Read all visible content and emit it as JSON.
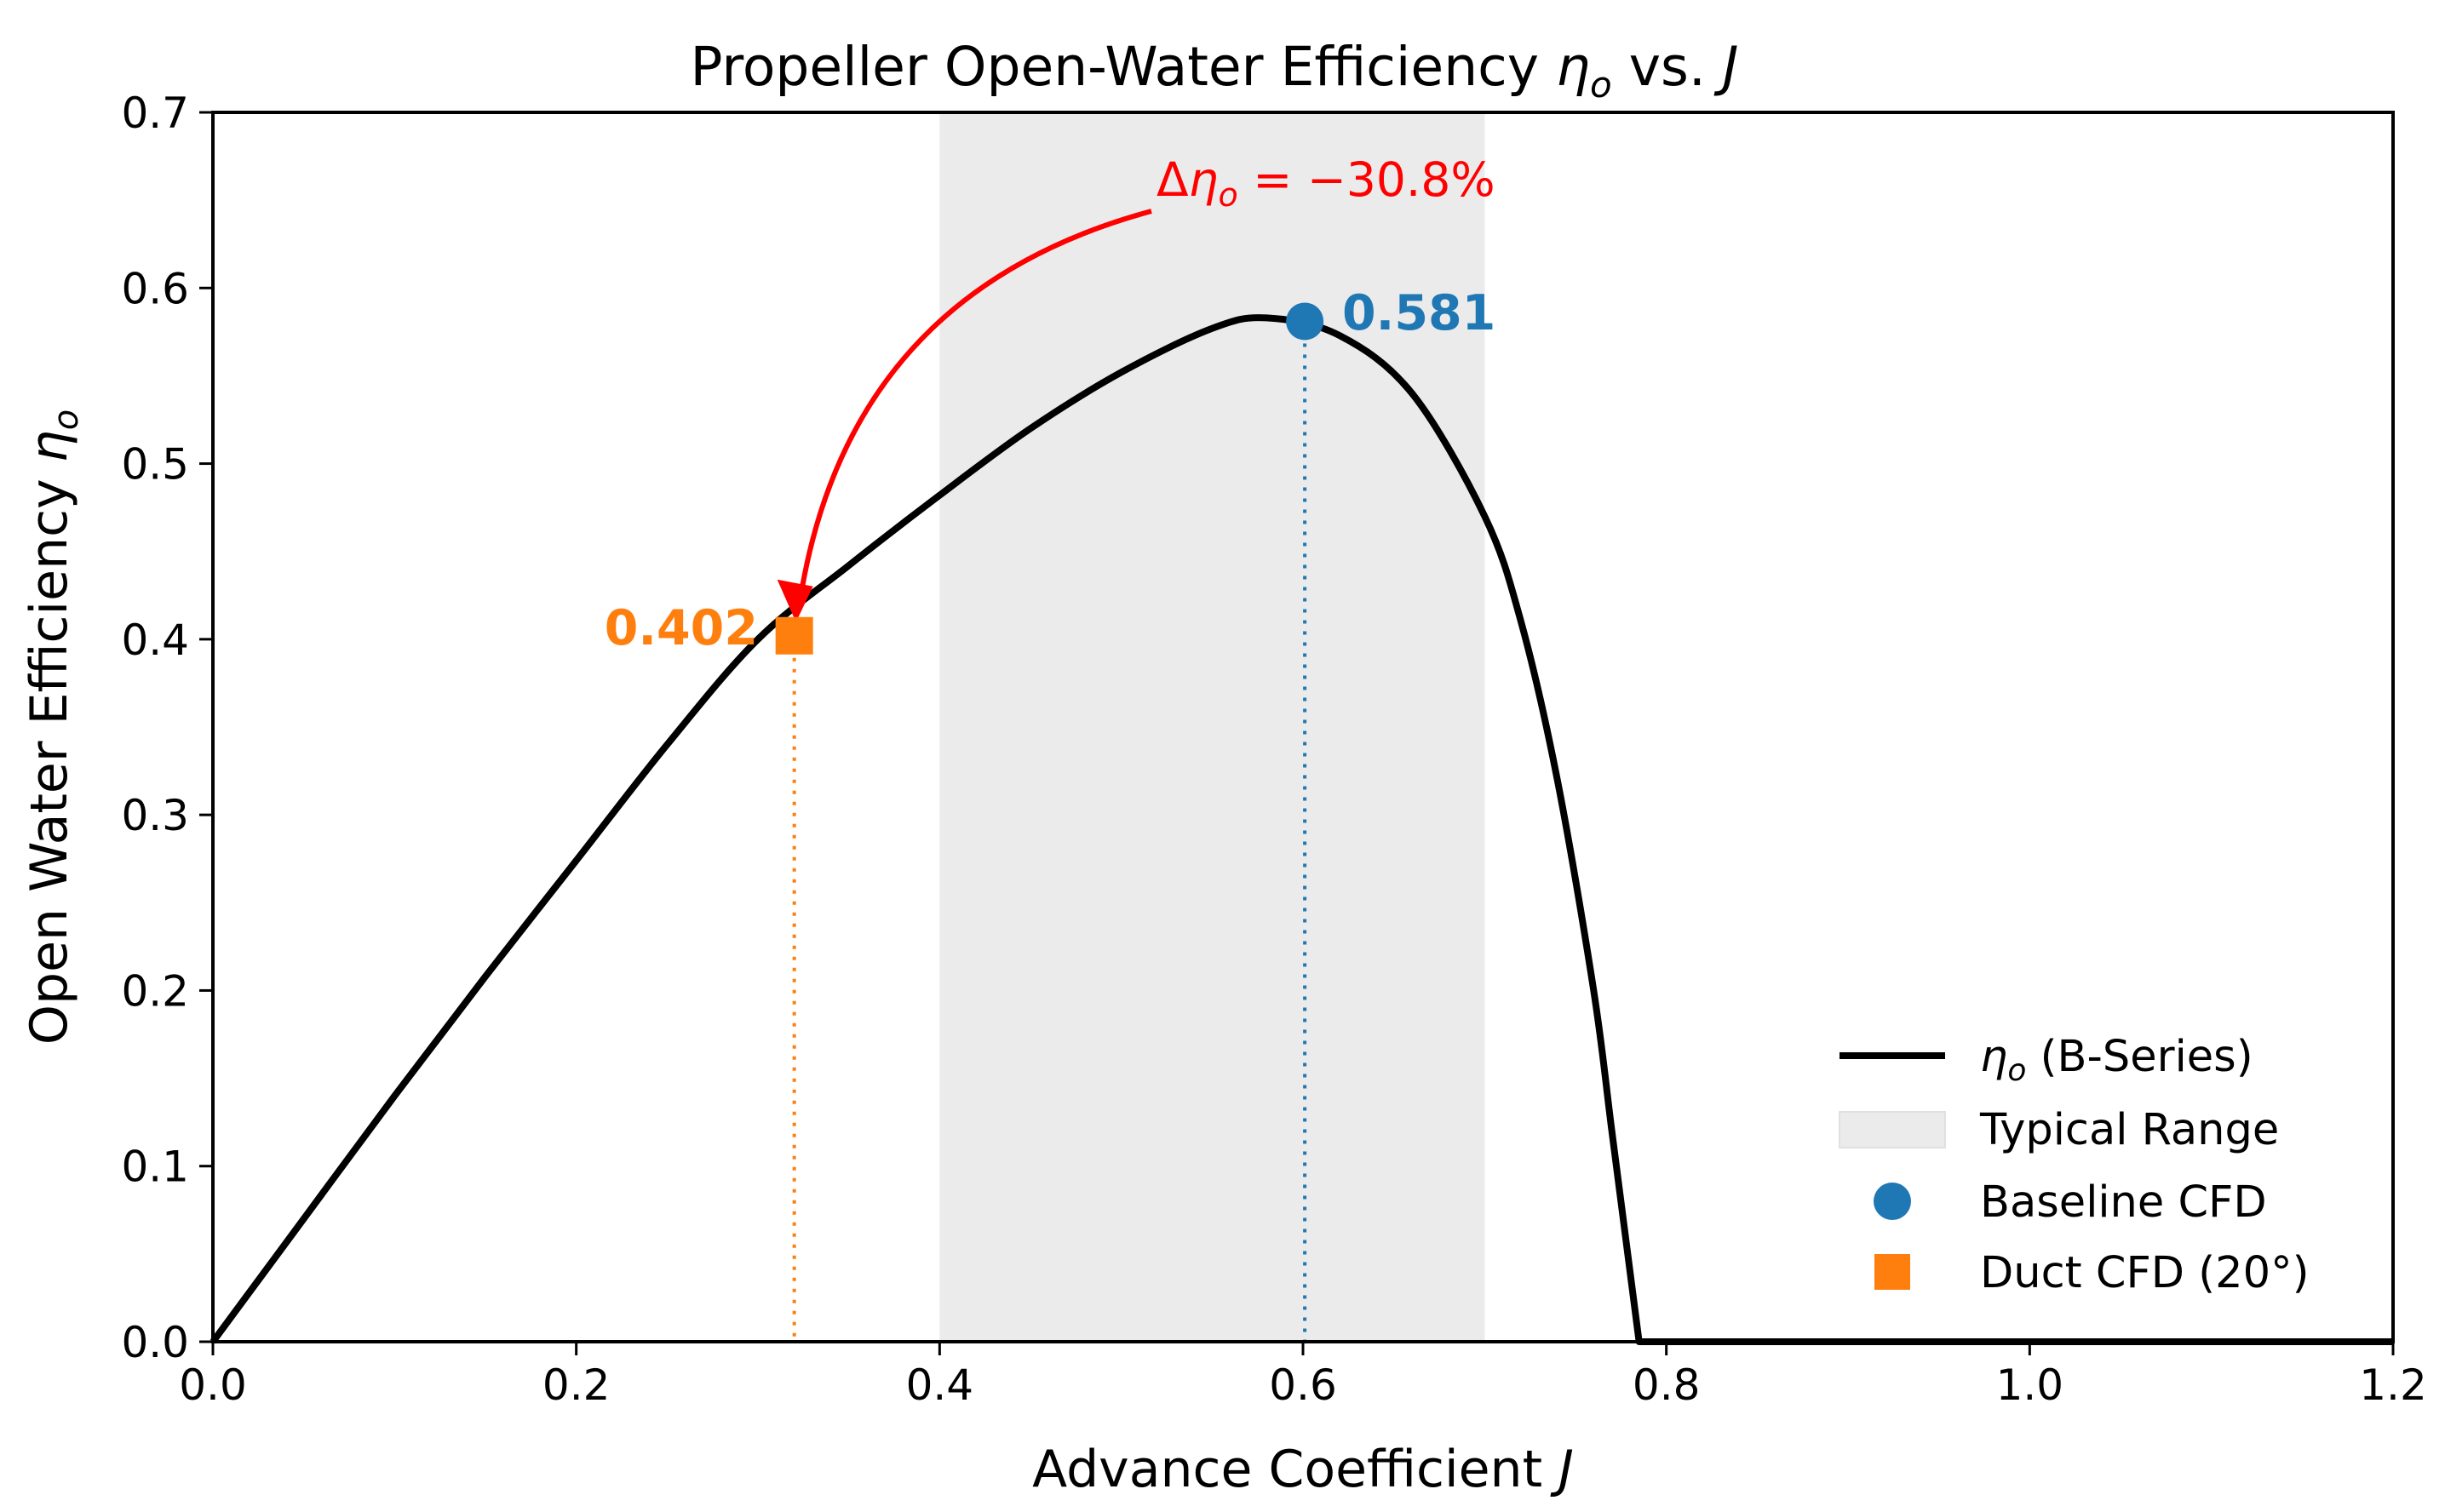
{
  "chart_data": {
    "type": "line",
    "title_main": "Propeller Open-Water Efficiency ",
    "title_symbol": "η",
    "title_symbol_sub": "o",
    "title_suffix": " vs. ",
    "title_var": "J",
    "xlabel_main": "Advance Coefficient ",
    "xlabel_var": "J",
    "ylabel_main": "Open Water Efficiency ",
    "ylabel_symbol": "η",
    "ylabel_symbol_sub": "o",
    "xlim": [
      0.0,
      1.2
    ],
    "ylim": [
      0.0,
      0.7
    ],
    "xticks": [
      "0.0",
      "0.2",
      "0.4",
      "0.6",
      "0.8",
      "1.0",
      "1.2"
    ],
    "yticks": [
      "0.0",
      "0.1",
      "0.2",
      "0.3",
      "0.4",
      "0.5",
      "0.6",
      "0.7"
    ],
    "grid": false,
    "series": [
      {
        "name": "ηo (B-Series)",
        "color": "#000000",
        "x": [
          0.0,
          0.05,
          0.1,
          0.15,
          0.2,
          0.25,
          0.3,
          0.35,
          0.4,
          0.45,
          0.5,
          0.55,
          0.58,
          0.62,
          0.66,
          0.7,
          0.72,
          0.74,
          0.76,
          0.77,
          0.78,
          0.785,
          1.2
        ],
        "y": [
          0.0,
          0.07,
          0.14,
          0.208,
          0.274,
          0.34,
          0.4,
          0.442,
          0.482,
          0.52,
          0.552,
          0.577,
          0.583,
          0.573,
          0.54,
          0.47,
          0.41,
          0.32,
          0.2,
          0.12,
          0.04,
          0.0,
          0.0
        ]
      }
    ],
    "shaded_region": {
      "name": "Typical Range",
      "x_range": [
        0.4,
        0.7
      ],
      "color": "#ebebeb"
    },
    "points": [
      {
        "name": "Baseline CFD",
        "x": 0.601,
        "y": 0.581,
        "label": "0.581",
        "marker": "circle",
        "color": "#1f77b4"
      },
      {
        "name": "Duct CFD (20°)",
        "x": 0.32,
        "y": 0.402,
        "label": "0.402",
        "marker": "square",
        "color": "#ff7f0e"
      }
    ],
    "annotation": {
      "prefix": "Δ",
      "symbol": "η",
      "symbol_sub": "o",
      "rest": " = −30.8%",
      "color": "#ff0000"
    },
    "legend": {
      "position": "lower right",
      "entries": [
        {
          "symbol": "η",
          "sub": "o",
          "rest": " (B-Series)"
        },
        {
          "text": "Typical Range"
        },
        {
          "text": "Baseline CFD"
        },
        {
          "text": "Duct CFD (20°)"
        }
      ]
    }
  }
}
